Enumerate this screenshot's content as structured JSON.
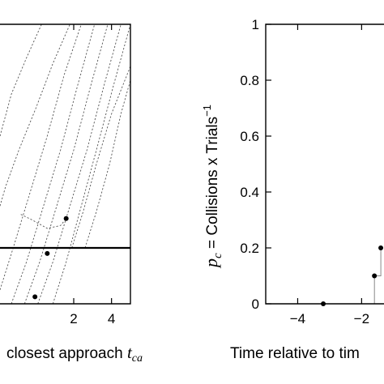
{
  "chart_data": [
    {
      "type": "line",
      "title": "",
      "xlabel": "closest approach",
      "xlabel_symbol": "t",
      "xlabel_subscript": "ca",
      "ylabel": "",
      "xlim": [
        -1.9,
        5
      ],
      "ylim": [
        0,
        1
      ],
      "x_ticks": [
        2,
        4
      ],
      "x_tick_labels": [
        "2",
        "4"
      ],
      "threshold_line": {
        "y": 0.2
      },
      "points": [
        {
          "x": 1.6,
          "y": 0.305
        },
        {
          "x": 0.6,
          "y": 0.18
        },
        {
          "x": -0.05,
          "y": 0.025
        }
      ],
      "dotted_curves": [
        {
          "x": [
            0.9,
            1.6,
            2.4,
            3.2,
            4.1,
            5.0
          ],
          "y": [
            0.0,
            0.15,
            0.35,
            0.55,
            0.78,
            1.0
          ]
        },
        {
          "x": [
            0.1,
            0.9,
            1.8,
            2.7,
            3.6,
            4.5
          ],
          "y": [
            0.0,
            0.15,
            0.35,
            0.55,
            0.78,
            1.0
          ]
        },
        {
          "x": [
            -0.6,
            0.2,
            1.1,
            2.0,
            2.9,
            3.8
          ],
          "y": [
            0.0,
            0.15,
            0.35,
            0.55,
            0.78,
            1.0
          ]
        },
        {
          "x": [
            -1.3,
            -0.5,
            0.4,
            1.3,
            2.2,
            3.1
          ],
          "y": [
            0.0,
            0.15,
            0.35,
            0.55,
            0.78,
            1.0
          ]
        },
        {
          "x": [
            -1.9,
            -1.2,
            -0.3,
            0.6,
            1.5,
            2.4
          ],
          "y": [
            0.05,
            0.2,
            0.4,
            0.6,
            0.82,
            1.0
          ]
        },
        {
          "x": [
            -1.9,
            -1.6,
            -0.9,
            0.0,
            0.9,
            1.8
          ],
          "y": [
            0.35,
            0.42,
            0.55,
            0.7,
            0.86,
            1.0
          ]
        },
        {
          "x": [
            -1.9,
            -1.7,
            -1.3,
            -0.5,
            0.3
          ],
          "y": [
            0.6,
            0.65,
            0.75,
            0.88,
            1.0
          ]
        },
        {
          "x": [
            1.9,
            2.5,
            3.2,
            4.0,
            5.0
          ],
          "y": [
            0.2,
            0.33,
            0.5,
            0.68,
            0.85
          ]
        },
        {
          "x": [
            2.6,
            3.2,
            3.9,
            4.5,
            5.0
          ],
          "y": [
            0.2,
            0.33,
            0.5,
            0.68,
            0.8
          ]
        },
        {
          "x": [
            -0.8,
            -0.2,
            0.6,
            1.3,
            1.6
          ],
          "y": [
            0.32,
            0.3,
            0.27,
            0.28,
            0.305
          ]
        }
      ]
    },
    {
      "type": "scatter",
      "title": "",
      "xlabel": "Time relative to tim",
      "ylabel": "= Collisions x Trials",
      "ylabel_symbol": "p",
      "ylabel_subscript": "c",
      "ylabel_superscript": "−1",
      "xlim": [
        -5,
        -1.3
      ],
      "ylim": [
        0,
        1
      ],
      "x_ticks": [
        -4,
        -2
      ],
      "x_tick_labels": [
        "−4",
        "−2"
      ],
      "y_ticks": [
        0,
        0.2,
        0.4,
        0.6,
        0.8,
        1
      ],
      "y_tick_labels": [
        "0",
        "0.2",
        "0.4",
        "0.6",
        "0.8",
        "1"
      ],
      "points": [
        {
          "x": -3.2,
          "y": 0
        },
        {
          "x": -1.6,
          "y": 0.1
        },
        {
          "x": -1.4,
          "y": 0.2
        }
      ],
      "step_line": {
        "x": [
          -1.6,
          -1.6,
          -1.4,
          -1.4
        ],
        "y": [
          0,
          0.1,
          0.1,
          0.2
        ]
      }
    }
  ]
}
